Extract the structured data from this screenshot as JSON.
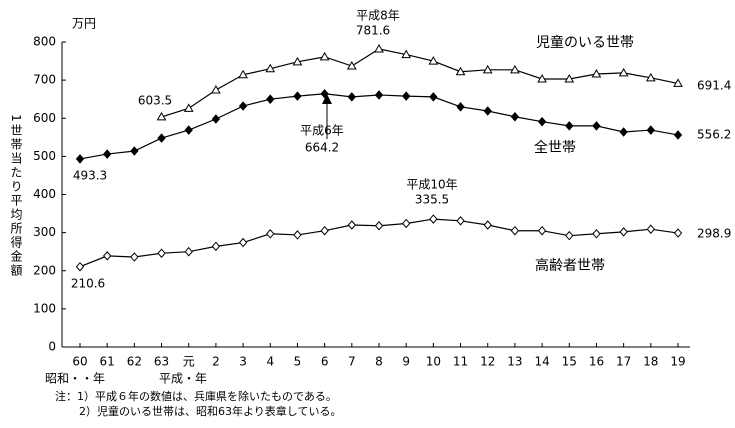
{
  "chart_data": {
    "type": "line",
    "unit_label": "万円",
    "y_axis_label": "1世帯当たり平均所得金額",
    "categories": [
      "60",
      "61",
      "62",
      "63",
      "元",
      "2",
      "3",
      "4",
      "5",
      "6",
      "7",
      "8",
      "9",
      "10",
      "11",
      "12",
      "13",
      "14",
      "15",
      "16",
      "17",
      "18",
      "19"
    ],
    "era_labels": [
      "昭和・・年",
      "平成・年"
    ],
    "ylim": [
      0,
      800
    ],
    "yticks": [
      0,
      100,
      200,
      300,
      400,
      500,
      600,
      700,
      800
    ],
    "grid": false,
    "series": [
      {
        "name": "児童のいる世帯",
        "color": "#000000",
        "marker": "triangle-open",
        "values": [
          null,
          null,
          null,
          603.5,
          626,
          674,
          714,
          730,
          748,
          761,
          737,
          781.6,
          767,
          750,
          722,
          727,
          727,
          703,
          703,
          716,
          719,
          706,
          691.4
        ],
        "value_labels": [
          null,
          null,
          null,
          "603.5",
          null,
          null,
          null,
          null,
          null,
          null,
          null,
          "781.6",
          null,
          null,
          null,
          null,
          null,
          null,
          null,
          null,
          null,
          null,
          "691.4"
        ]
      },
      {
        "name": "全世帯",
        "color": "#000000",
        "marker": "diamond-filled",
        "values": [
          493.3,
          506,
          514,
          548,
          569,
          598,
          632,
          650,
          658,
          664.2,
          656,
          661,
          658,
          656,
          630,
          619,
          604,
          591,
          580,
          580,
          564,
          569,
          556.2
        ],
        "value_labels": [
          "493.3",
          null,
          null,
          null,
          null,
          null,
          null,
          null,
          null,
          "664.2",
          null,
          null,
          null,
          null,
          null,
          null,
          null,
          null,
          null,
          null,
          null,
          null,
          "556.2"
        ]
      },
      {
        "name": "高齢者世帯",
        "color": "#000000",
        "marker": "diamond-open",
        "values": [
          210.6,
          239,
          236,
          246,
          250,
          264,
          274,
          297,
          294,
          305,
          320,
          318,
          324,
          335.5,
          331,
          320,
          305,
          305,
          292,
          297,
          302,
          309,
          298.9
        ],
        "value_labels": [
          "210.6",
          null,
          null,
          null,
          null,
          null,
          null,
          null,
          null,
          null,
          null,
          null,
          null,
          "335.5",
          null,
          null,
          null,
          null,
          null,
          null,
          null,
          null,
          "298.9"
        ]
      }
    ],
    "annotations": [
      "平成8年",
      "平成6年",
      "平成10年"
    ],
    "notes": [
      "注：1）平成６年の数値は、兵庫県を除いたものである。",
      "2）児童のいる世帯は、昭和63年より表章している。"
    ]
  }
}
